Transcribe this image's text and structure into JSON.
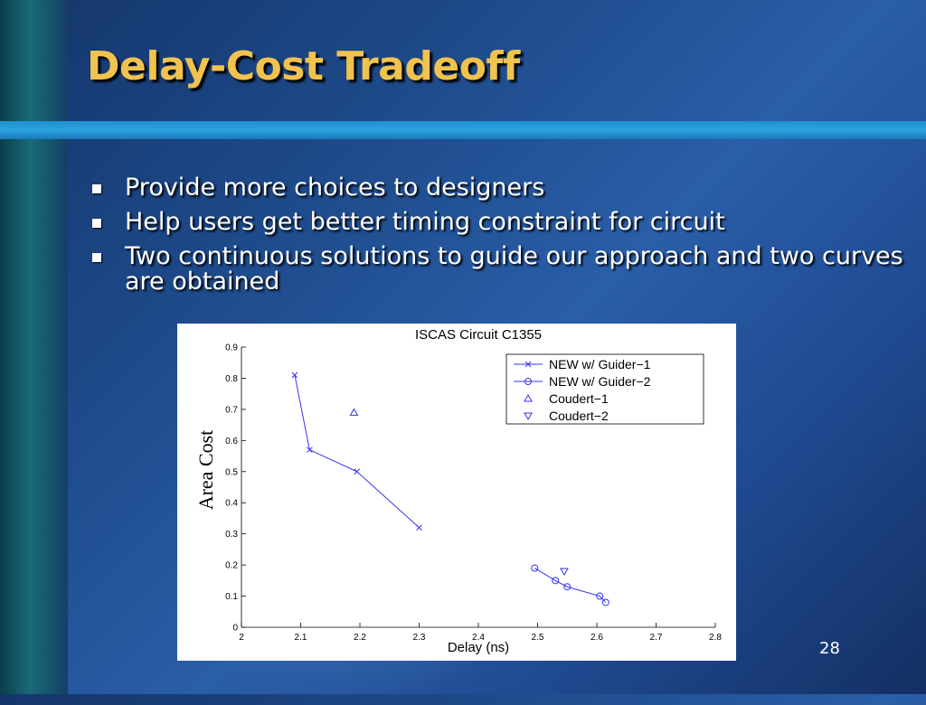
{
  "slide": {
    "title": "Delay-Cost Tradeoff",
    "bullets": [
      "Provide more choices to designers",
      "Help users get better timing constraint for circuit",
      "Two continuous solutions to guide our approach and two curves are obtained"
    ],
    "page_number": "28",
    "colors": {
      "title": "#f0c24e",
      "text": "#ffffff",
      "plot_series": "#3333ee"
    }
  },
  "chart_data": {
    "type": "line",
    "title": "ISCAS Circuit C1355",
    "xlabel": "Delay (ns)",
    "ylabel": "Area Cost",
    "xlim": [
      2,
      2.8
    ],
    "ylim": [
      0,
      0.9
    ],
    "x_ticks": [
      "2",
      "2.1",
      "2.2",
      "2.3",
      "2.4",
      "2.5",
      "2.6",
      "2.7",
      "2.8"
    ],
    "y_ticks": [
      "0",
      "0.1",
      "0.2",
      "0.3",
      "0.4",
      "0.5",
      "0.6",
      "0.7",
      "0.8",
      "0.9"
    ],
    "legend_position": "top-right",
    "grid": false,
    "series": [
      {
        "name": "NEW w/ Guider−1",
        "marker": "x",
        "line": true,
        "x": [
          2.09,
          2.115,
          2.195,
          2.3
        ],
        "y": [
          0.81,
          0.57,
          0.5,
          0.32
        ]
      },
      {
        "name": "NEW w/ Guider−2",
        "marker": "o",
        "line": true,
        "x": [
          2.495,
          2.53,
          2.55,
          2.605,
          2.615
        ],
        "y": [
          0.19,
          0.15,
          0.13,
          0.1,
          0.08
        ]
      },
      {
        "name": "Coudert−1",
        "marker": "triangle-up",
        "line": false,
        "x": [
          2.19
        ],
        "y": [
          0.69
        ]
      },
      {
        "name": "Coudert−2",
        "marker": "triangle-down",
        "line": false,
        "x": [
          2.545
        ],
        "y": [
          0.18
        ]
      }
    ]
  }
}
